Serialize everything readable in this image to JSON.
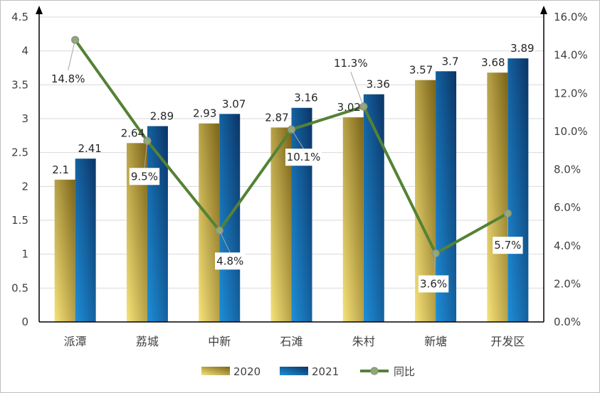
{
  "chart_data": {
    "type": "bar",
    "categories": [
      "派潭",
      "荔城",
      "中新",
      "石滩",
      "朱村",
      "新塘",
      "开发区"
    ],
    "series": [
      {
        "name": "2020",
        "type": "bar",
        "axis": "left",
        "values": [
          2.1,
          2.64,
          2.93,
          2.87,
          3.02,
          3.57,
          3.68
        ],
        "labels": [
          "2.1",
          "2.64",
          "2.93",
          "2.87",
          "3.02",
          "3.57",
          "3.68"
        ],
        "color_light": "#f7e27a",
        "color_dark": "#7a6318"
      },
      {
        "name": "2021",
        "type": "bar",
        "axis": "left",
        "values": [
          2.41,
          2.89,
          3.07,
          3.16,
          3.36,
          3.7,
          3.89
        ],
        "labels": [
          "2.41",
          "2.89",
          "3.07",
          "3.16",
          "3.36",
          "3.7",
          "3.89"
        ],
        "color_light": "#1e8fd8",
        "color_dark": "#0b3466"
      },
      {
        "name": "同比",
        "type": "line",
        "axis": "right",
        "values": [
          14.8,
          9.5,
          4.8,
          10.1,
          11.3,
          3.6,
          5.7
        ],
        "labels": [
          "14.8%",
          "9.5%",
          "4.8%",
          "10.1%",
          "11.3%",
          "3.6%",
          "5.7%"
        ],
        "color": "#548235"
      }
    ],
    "y_left": {
      "min": 0,
      "max": 4.5,
      "ticks": [
        "0",
        "0.5",
        "1",
        "1.5",
        "2",
        "2.5",
        "3",
        "3.5",
        "4",
        "4.5"
      ]
    },
    "y_right": {
      "min": 0,
      "max": 16,
      "ticks": [
        "0.0%",
        "2.0%",
        "4.0%",
        "6.0%",
        "8.0%",
        "10.0%",
        "12.0%",
        "14.0%",
        "16.0%"
      ]
    },
    "grid": true,
    "legend_position": "bottom"
  }
}
